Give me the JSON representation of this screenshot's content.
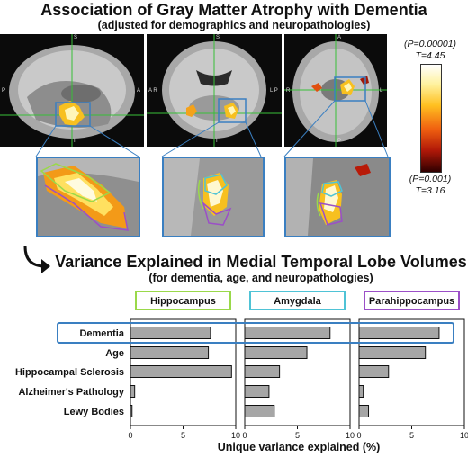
{
  "figure": {
    "title": "Association of Gray Matter Atrophy with Dementia",
    "subtitle": "(adjusted for demographics and neuropathologies)",
    "colorbar": {
      "top_p": "(P=0.00001)",
      "top_t": "T=4.45",
      "bottom_p": "(P=0.001)",
      "bottom_t": "T=3.16"
    },
    "panel_letters": {
      "sagittal": [
        "S",
        "P",
        "A",
        "I"
      ],
      "coronal": [
        "S",
        "A R",
        "L P",
        "I"
      ],
      "axial": [
        "A",
        "R",
        "L",
        "P"
      ]
    }
  },
  "section2": {
    "title": "Variance Explained in Medial Temporal Lobe Volumes",
    "subtitle": "(for dementia, age, and neuropathologies)"
  },
  "chart_data": {
    "type": "bar",
    "orientation": "horizontal",
    "categories": [
      "Dementia",
      "Age",
      "Hippocampal Sclerosis",
      "Alzheimer's Pathology",
      "Lewy Bodies"
    ],
    "panels": [
      {
        "name": "Hippocampus",
        "color": "#9ad94a",
        "values": [
          7.6,
          7.4,
          9.6,
          0.4,
          0.15
        ]
      },
      {
        "name": "Amygdala",
        "color": "#4fc3d6",
        "values": [
          8.1,
          5.9,
          3.3,
          2.3,
          2.8
        ]
      },
      {
        "name": "Parahippocampus",
        "color": "#9b4fc7",
        "values": [
          7.6,
          6.3,
          2.8,
          0.4,
          0.9
        ]
      }
    ],
    "xlim": [
      0,
      10
    ],
    "xticks": [
      "0",
      "5",
      "10"
    ],
    "xlabel": "Unique variance explained (%)",
    "highlight": "Dementia",
    "bar_color": "#a6a6a6"
  }
}
